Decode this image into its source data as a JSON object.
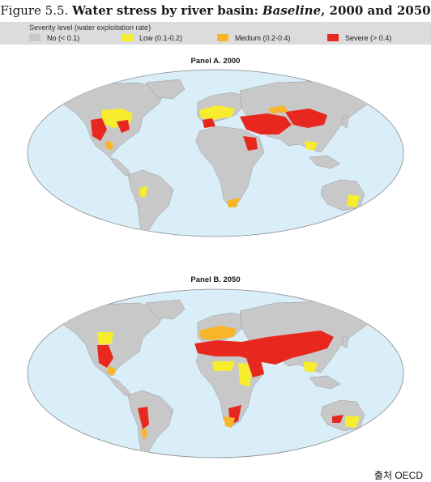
{
  "figure": {
    "label": "Figure 5.5.",
    "title_bold": "Water stress by river basin:",
    "title_italic": "Baseline",
    "title_rest": ", 2000 and 2050"
  },
  "legend": {
    "heading": "Severity level (water exploitation rate)",
    "items": [
      {
        "label": "No (< 0.1)",
        "color": "#c8c8c8"
      },
      {
        "label": "Low (0.1-0.2)",
        "color": "#f7ec2e"
      },
      {
        "label": "Medium (0.2-0.4)",
        "color": "#f9b529"
      },
      {
        "label": "Severe (> 0.4)",
        "color": "#e8281e"
      }
    ]
  },
  "panels": [
    {
      "title": "Panel A. 2000"
    },
    {
      "title": "Panel B. 2050"
    }
  ],
  "colors": {
    "ocean": "#d9eef8",
    "land": "#c8c8c8",
    "coast": "#8a8a8a"
  },
  "source": "출처 OECD"
}
